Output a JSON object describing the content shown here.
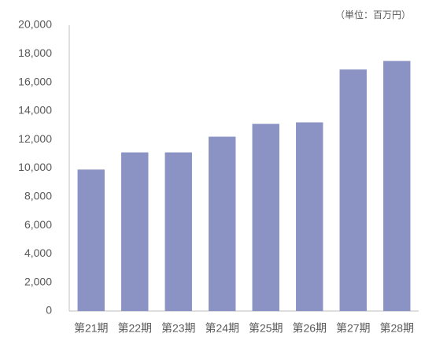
{
  "chart_data": {
    "type": "bar",
    "annotation": "（単位：百万円）",
    "categories": [
      "第21期",
      "第22期",
      "第23期",
      "第24期",
      "第25期",
      "第26期",
      "第27期",
      "第28期"
    ],
    "values": [
      9900,
      11100,
      11100,
      12200,
      13100,
      13200,
      16900,
      17500
    ],
    "color": "#8b93c4",
    "ylim": [
      0,
      20000
    ],
    "yticks": [
      0,
      {
        "value": 2000,
        "label": "2,000"
      },
      {
        "value": 4000,
        "label": "4,000"
      },
      {
        "value": 6000,
        "label": "6,000"
      },
      {
        "value": 8000,
        "label": "8,000"
      },
      {
        "value": 10000,
        "label": "10,000"
      },
      {
        "value": 12000,
        "label": "12,000"
      },
      {
        "value": 14000,
        "label": "14,000"
      },
      {
        "value": 16000,
        "label": "16,000"
      },
      {
        "value": 18000,
        "label": "18,000"
      },
      {
        "value": 20000,
        "label": "20,000"
      }
    ],
    "grid": false
  }
}
